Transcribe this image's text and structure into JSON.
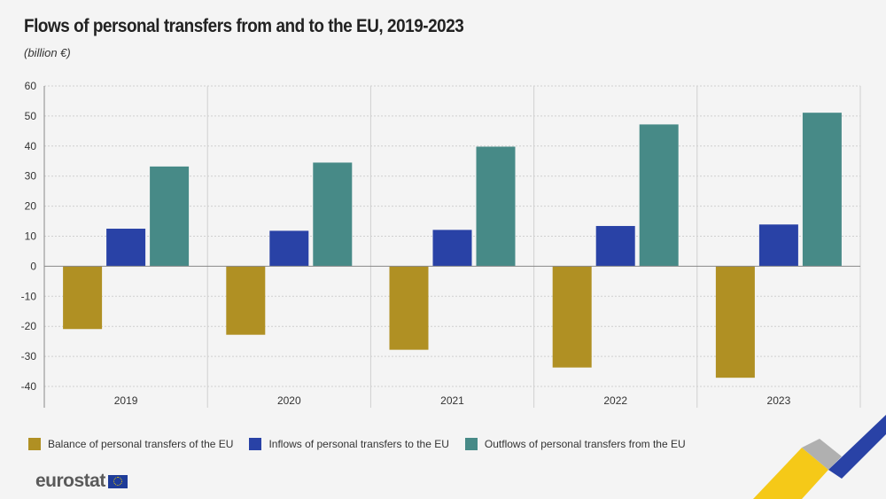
{
  "title": "Flows of personal transfers from and to the EU, 2019-2023",
  "subtitle": "(billion €)",
  "chart_data": {
    "type": "bar",
    "title": "Flows of personal transfers from and to the EU, 2019-2023",
    "ylabel": "(billion €)",
    "categories": [
      "2019",
      "2020",
      "2021",
      "2022",
      "2023"
    ],
    "ylim": [
      -40,
      60
    ],
    "yticks": [
      60,
      50,
      40,
      30,
      20,
      10,
      0,
      -10,
      -20,
      -30,
      -40
    ],
    "grid": true,
    "legend_position": "bottom",
    "series": [
      {
        "name": "Balance of personal transfers of the EU",
        "color": "#b09023",
        "values": [
          -20.9,
          -22.8,
          -27.8,
          -33.7,
          -37.1
        ]
      },
      {
        "name": "Inflows of personal transfers to the EU",
        "color": "#2942a6",
        "values": [
          12.5,
          11.8,
          12.1,
          13.4,
          13.9
        ]
      },
      {
        "name": "Outflows of personal transfers from the EU",
        "color": "#478a87",
        "values": [
          33.2,
          34.5,
          39.8,
          47.2,
          51.1
        ]
      }
    ]
  },
  "logo": "eurostat"
}
